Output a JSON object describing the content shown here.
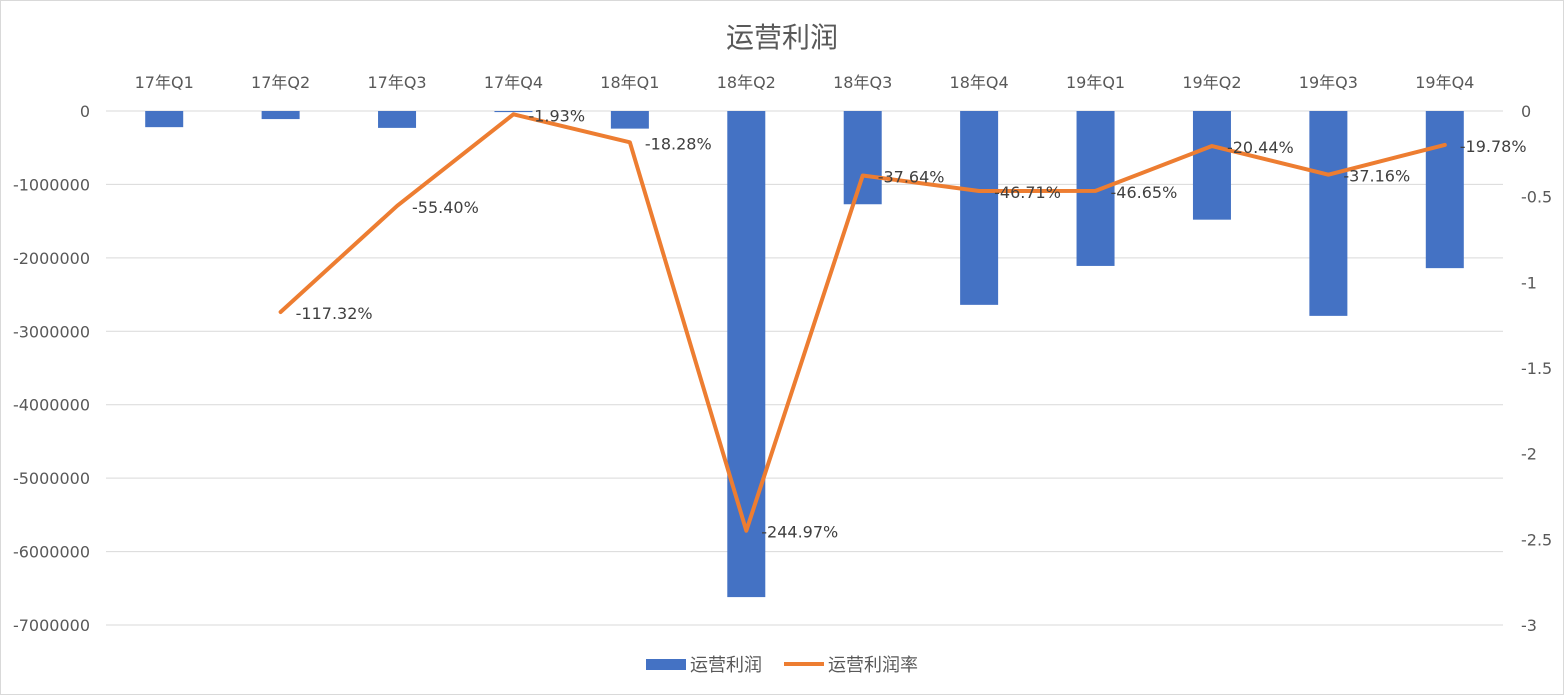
{
  "chart_data": {
    "type": "bar",
    "title": "运营利润",
    "categories": [
      "17年Q1",
      "17年Q2",
      "17年Q3",
      "17年Q4",
      "18年Q1",
      "18年Q2",
      "18年Q3",
      "18年Q4",
      "19年Q1",
      "19年Q2",
      "19年Q3",
      "19年Q4"
    ],
    "series": [
      {
        "name": "运营利润",
        "type": "bar",
        "axis": "left",
        "color": "#4472C4",
        "values": [
          -220000,
          -110000,
          -230000,
          -15000,
          -240000,
          -6620000,
          -1270000,
          -2640000,
          -2110000,
          -1480000,
          -2790000,
          -2140000
        ]
      },
      {
        "name": "运营利润率",
        "type": "line",
        "axis": "right",
        "color": "#ED7D31",
        "values": [
          null,
          -1.1732,
          -0.554,
          -0.0193,
          -0.1828,
          -2.4497,
          -0.3764,
          -0.4671,
          -0.4665,
          -0.2044,
          -0.3716,
          -0.1978
        ],
        "labels": [
          "",
          "-117.32%",
          "-55.40%",
          "-1.93%",
          "-18.28%",
          "-244.97%",
          "-37.64%",
          "-46.71%",
          "-46.65%",
          "-20.44%",
          "-37.16%",
          "-19.78%"
        ]
      }
    ],
    "y_left": {
      "min": -7000000,
      "max": 0,
      "ticks": [
        "0",
        "-1000000",
        "-2000000",
        "-3000000",
        "-4000000",
        "-5000000",
        "-6000000",
        "-7000000"
      ],
      "tick_values": [
        0,
        -1000000,
        -2000000,
        -3000000,
        -4000000,
        -5000000,
        -6000000,
        -7000000
      ]
    },
    "y_right": {
      "min": -3,
      "max": 0,
      "ticks": [
        "0",
        "-0.5",
        "-1",
        "-1.5",
        "-2",
        "-2.5",
        "-3"
      ],
      "tick_values": [
        0,
        -0.5,
        -1,
        -1.5,
        -2,
        -2.5,
        -3
      ]
    },
    "grid": true,
    "legend_position": "bottom",
    "category_axis_position": "top"
  }
}
